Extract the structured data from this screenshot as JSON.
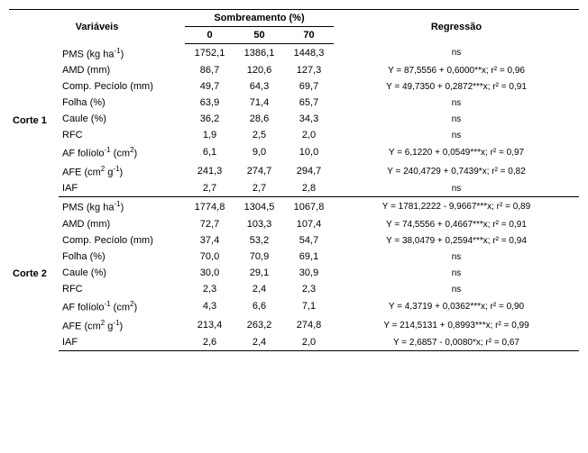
{
  "header": {
    "var_label": "Variáveis",
    "somb_label": "Sombreamento (%)",
    "reg_label": "Regressão",
    "somb_levels": [
      "0",
      "50",
      "70"
    ]
  },
  "sections": [
    {
      "label": "Corte 1",
      "rows": [
        {
          "var_html": "PMS (kg ha<sup>-1</sup>)",
          "vals": [
            "1752,1",
            "1386,1",
            "1448,3"
          ],
          "reg": "ns"
        },
        {
          "var_html": "AMD (mm)",
          "vals": [
            "86,7",
            "120,6",
            "127,3"
          ],
          "reg": "Y = 87,5556 + 0,6000**x; r² = 0,96"
        },
        {
          "var_html": "Comp. Pecíolo (mm)",
          "vals": [
            "49,7",
            "64,3",
            "69,7"
          ],
          "reg": "Y = 49,7350 + 0,2872***x; r² = 0,91"
        },
        {
          "var_html": "Folha (%)",
          "vals": [
            "63,9",
            "71,4",
            "65,7"
          ],
          "reg": "ns"
        },
        {
          "var_html": "Caule (%)",
          "vals": [
            "36,2",
            "28,6",
            "34,3"
          ],
          "reg": "ns"
        },
        {
          "var_html": "RFC",
          "vals": [
            "1,9",
            "2,5",
            "2,0"
          ],
          "reg": "ns"
        },
        {
          "var_html": "AF folíolo<sup>-1</sup> (cm<sup>2</sup>)",
          "vals": [
            "6,1",
            "9,0",
            "10,0"
          ],
          "reg": "Y = 6,1220 + 0,0549***x; r² = 0,97"
        },
        {
          "var_html": "AFE (cm<sup>2</sup> g<sup>-1</sup>)",
          "vals": [
            "241,3",
            "274,7",
            "294,7"
          ],
          "reg": "Y = 240,4729 + 0,7439*x; r² = 0,82"
        },
        {
          "var_html": "IAF",
          "vals": [
            "2,7",
            "2,7",
            "2,8"
          ],
          "reg": "ns"
        }
      ]
    },
    {
      "label": "Corte 2",
      "rows": [
        {
          "var_html": "PMS (kg ha<sup>-1</sup>)",
          "vals": [
            "1774,8",
            "1304,5",
            "1067,8"
          ],
          "reg": "Y = 1781,2222 - 9,9667***x; r² = 0,89"
        },
        {
          "var_html": "AMD (mm)",
          "vals": [
            "72,7",
            "103,3",
            "107,4"
          ],
          "reg": "Y = 74,5556 + 0,4667***x; r² = 0,91"
        },
        {
          "var_html": "Comp. Pecíolo (mm)",
          "vals": [
            "37,4",
            "53,2",
            "54,7"
          ],
          "reg": "Y = 38,0479 + 0,2594***x; r² = 0,94"
        },
        {
          "var_html": "Folha (%)",
          "vals": [
            "70,0",
            "70,9",
            "69,1"
          ],
          "reg": "ns"
        },
        {
          "var_html": "Caule (%)",
          "vals": [
            "30,0",
            "29,1",
            "30,9"
          ],
          "reg": "ns"
        },
        {
          "var_html": "RFC",
          "vals": [
            "2,3",
            "2,4",
            "2,3"
          ],
          "reg": "ns"
        },
        {
          "var_html": "AF folíolo<sup>-1</sup> (cm<sup>2</sup>)",
          "vals": [
            "4,3",
            "6,6",
            "7,1"
          ],
          "reg": "Y = 4,3719 + 0,0362***x; r² = 0,90"
        },
        {
          "var_html": "AFE (cm<sup>2</sup> g<sup>-1</sup>)",
          "vals": [
            "213,4",
            "263,2",
            "274,8"
          ],
          "reg": "Y = 214,5131 + 0,8993***x; r² = 0,99"
        },
        {
          "var_html": "IAF",
          "vals": [
            "2,6",
            "2,4",
            "2,0"
          ],
          "reg": "Y = 2,6857 - 0,0080*x; r² = 0,67"
        }
      ]
    }
  ],
  "layout": {
    "col_widths": [
      "55px",
      "140px",
      "55px",
      "55px",
      "55px",
      "auto"
    ]
  }
}
